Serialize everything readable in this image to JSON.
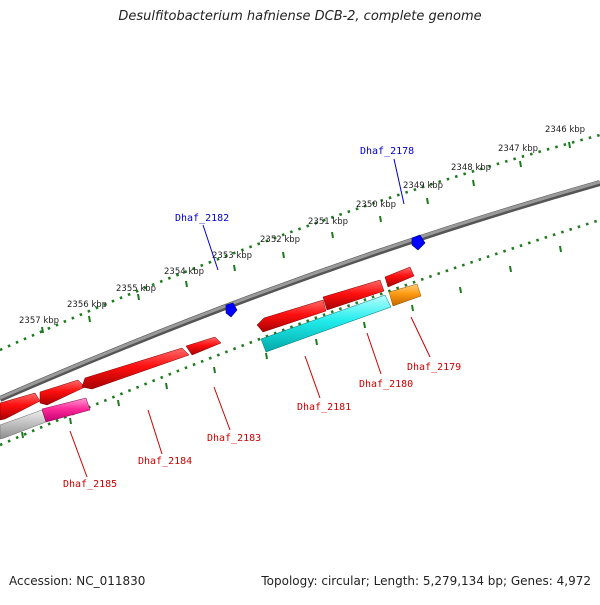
{
  "title": "Desulfitobacterium hafniense DCB-2, complete genome",
  "footer": {
    "accession": "Accession: NC_011830",
    "summary": "Topology: circular; Length: 5,279,134 bp; Genes: 4,972"
  },
  "colors": {
    "backbone": "#7a7a7a",
    "scale": "#1f7a1f",
    "forward_gene": "#e60000",
    "label_forward": "#cc0000",
    "label_reverse": "#0000cc",
    "marker": "#0000ff"
  },
  "scale_ticks": [
    "2357 kbp",
    "2356 kbp",
    "2355 kbp",
    "2354 kbp",
    "2353 kbp",
    "2352 kbp",
    "2351 kbp",
    "2350 kbp",
    "2349 kbp",
    "2348 kbp",
    "2347 kbp",
    "2346 kbp"
  ],
  "genes": [
    {
      "name": "Dhaf_2185",
      "strand": "forward",
      "color": "#ff1a8c"
    },
    {
      "name": "Dhaf_2184",
      "strand": "forward",
      "color": "#e60000"
    },
    {
      "name": "Dhaf_2183",
      "strand": "forward",
      "color": "#e60000"
    },
    {
      "name": "Dhaf_2182",
      "strand": "reverse",
      "color": "#0000ff"
    },
    {
      "name": "Dhaf_2181",
      "strand": "forward",
      "color": "#00e5e5"
    },
    {
      "name": "Dhaf_2180",
      "strand": "forward",
      "color": "#e60000"
    },
    {
      "name": "Dhaf_2179",
      "strand": "forward",
      "color": "#ff9900"
    },
    {
      "name": "Dhaf_2178",
      "strand": "reverse",
      "color": "#0000ff"
    }
  ]
}
